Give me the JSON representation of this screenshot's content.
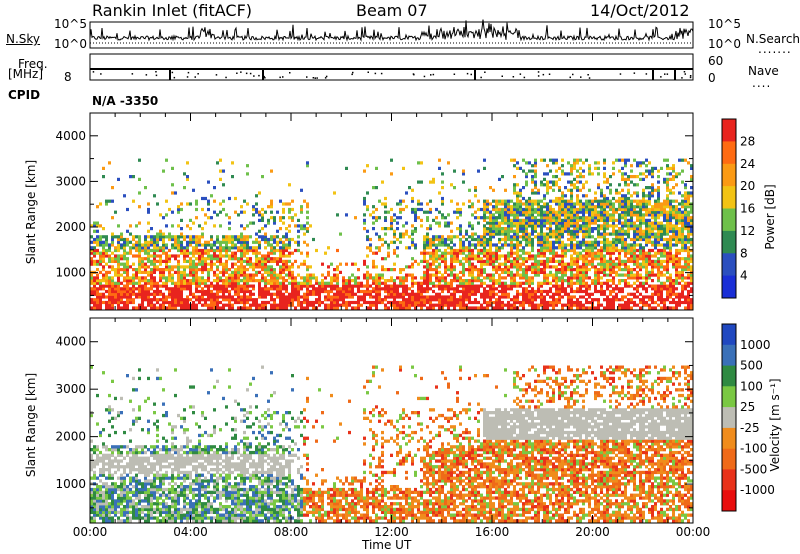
{
  "header": {
    "station": "Rankin Inlet (fitACF)",
    "beam": "Beam 07",
    "date": "14/Oct/2012"
  },
  "noise_panel": {
    "left_label": "N.Sky",
    "right_label": "N.Search",
    "left_ticks": [
      "10^5",
      "10^0"
    ],
    "right_ticks": [
      "10^5",
      "10^0"
    ]
  },
  "freq_panel": {
    "left_label_1": "Freq.",
    "left_label_2": "[MHz]",
    "left_tick": "8",
    "right_label": "Nave",
    "right_ticks": [
      "60",
      "0"
    ],
    "cpid_label": "CPID",
    "cpid_value": "N/A -3350"
  },
  "chart_data": [
    {
      "type": "heatmap",
      "name": "power",
      "ylabel": "Slant Range [km]",
      "xlabel": "",
      "ylim": [
        180,
        4500
      ],
      "y_ticks": [
        "4000",
        "3000",
        "2000",
        "1000"
      ],
      "colorbar_label": "Power [dB]",
      "colorbar_ticks": [
        "28",
        "24",
        "20",
        "16",
        "12",
        "8",
        "4"
      ],
      "colorbar_colors": [
        "#e8241e",
        "#ff6b12",
        "#fb9a14",
        "#f2c314",
        "#6ec04a",
        "#2f8a52",
        "#2b4fbf",
        "#1a2fd6"
      ]
    },
    {
      "type": "heatmap",
      "name": "velocity",
      "ylabel": "Slant Range [km]",
      "xlabel": "Time UT",
      "ylim": [
        180,
        4500
      ],
      "y_ticks": [
        "4000",
        "3000",
        "2000",
        "1000"
      ],
      "x_ticks": [
        "00:00",
        "04:00",
        "08:00",
        "12:00",
        "16:00",
        "20:00",
        "00:00"
      ],
      "colorbar_label": "Velocity [m s⁻¹]",
      "colorbar_ticks": [
        "1000",
        "500",
        "100",
        "25",
        "-25",
        "-100",
        "-500",
        "-1000"
      ],
      "colorbar_colors": [
        "#2048c0",
        "#3a70b8",
        "#2f8a42",
        "#7ac843",
        "#bdbdb4",
        "#f08c1c",
        "#ef6a18",
        "#e8321a",
        "#e80d0d"
      ]
    }
  ]
}
